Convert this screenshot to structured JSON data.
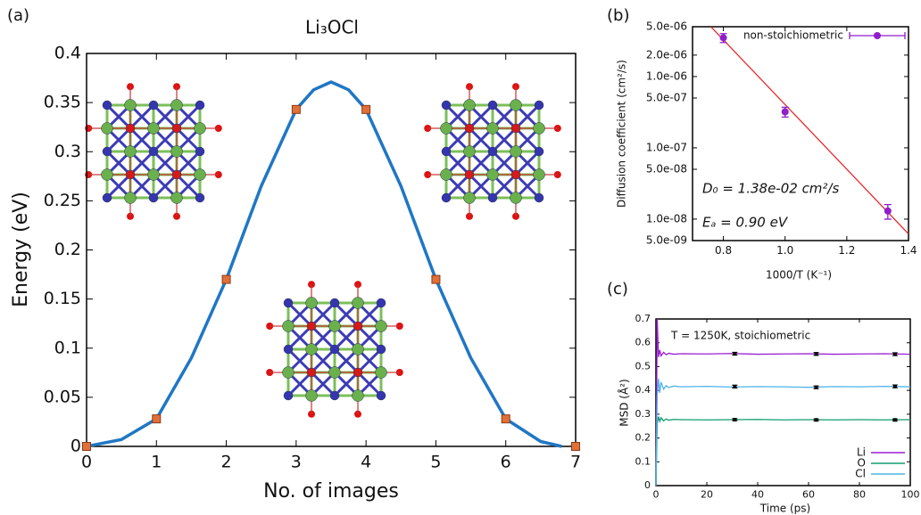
{
  "chart_data": [
    {
      "type": "line",
      "panel_label": "(a)",
      "title": "Li₃OCl",
      "x_label": "No. of images",
      "y_label": "Energy (eV)",
      "xlim": [
        0,
        7
      ],
      "ylim": [
        0,
        0.4
      ],
      "xticks": [
        0,
        1,
        2,
        3,
        4,
        5,
        6,
        7
      ],
      "yticks": [
        0,
        0.05,
        0.1,
        0.15,
        0.2,
        0.25,
        0.3,
        0.35,
        0.4
      ],
      "curve": {
        "color": "#1f77c4",
        "x": [
          0,
          0.5,
          1,
          1.5,
          2,
          2.5,
          3,
          3.25,
          3.5,
          3.75,
          4,
          4.5,
          5,
          5.5,
          6,
          6.5,
          6.8
        ],
        "values": [
          0,
          0.007,
          0.028,
          0.09,
          0.17,
          0.265,
          0.343,
          0.363,
          0.371,
          0.363,
          0.343,
          0.265,
          0.17,
          0.09,
          0.028,
          0.005,
          0
        ]
      },
      "markers": {
        "color": "#e0703a",
        "x": [
          0,
          1,
          2,
          3,
          4,
          5,
          6,
          7
        ],
        "values": [
          0,
          0.028,
          0.17,
          0.343,
          0.343,
          0.17,
          0.028,
          0
        ]
      }
    },
    {
      "type": "scatter",
      "panel_label": "(b)",
      "x_label": "1000/T (K⁻¹)",
      "y_label": "Diffusion coefficient (cm²/s)",
      "log_y": true,
      "xlim": [
        0.7,
        1.4
      ],
      "ylim": [
        5e-09,
        5e-06
      ],
      "xticks": [
        {
          "value": 0.8,
          "label": "0.8"
        },
        {
          "value": 1.0,
          "label": "1.0"
        },
        {
          "value": 1.2,
          "label": "1.2"
        },
        {
          "value": 1.4,
          "label": "1.4"
        }
      ],
      "yticks": [
        {
          "value": 5e-06,
          "label": "5.0e-06"
        },
        {
          "value": 2e-06,
          "label": "2.0e-06"
        },
        {
          "value": 1e-06,
          "label": "1.0e-06"
        },
        {
          "value": 5e-07,
          "label": "5.0e-07"
        },
        {
          "value": 1e-07,
          "label": "1.0e-07"
        },
        {
          "value": 5e-08,
          "label": "5.0e-08"
        },
        {
          "value": 1e-08,
          "label": "1.0e-08"
        },
        {
          "value": 5e-09,
          "label": "5.0e-09"
        }
      ],
      "legend": "top-right",
      "series": [
        {
          "name": "non-stoichiometric",
          "color": "#8e1fc9",
          "x": [
            0.8,
            1.0,
            1.333
          ],
          "values": [
            3.5e-06,
            3.2e-07,
            1.3e-08
          ],
          "errors": [
            5e-07,
            5e-08,
            3e-09
          ]
        }
      ],
      "fit": {
        "color": "#e8282b",
        "x": [
          0.76,
          1.4
        ],
        "values": [
          4.97e-06,
          6.2e-09
        ]
      },
      "annotations": [
        "D₀ = 1.38e-02 cm²/s",
        "Eₐ = 0.90 eV"
      ]
    },
    {
      "type": "line",
      "panel_label": "(c)",
      "x_label": "Time (ps)",
      "y_label": "MSD (Å²)",
      "xlim": [
        0,
        100
      ],
      "ylim": [
        0,
        0.7
      ],
      "xticks": [
        0,
        20,
        40,
        60,
        80,
        100
      ],
      "yticks": [
        0,
        0.1,
        0.2,
        0.3,
        0.4,
        0.5,
        0.6,
        0.7
      ],
      "legend": "bottom-right",
      "annotation": "T = 1250K, stoichiometric",
      "x": [
        0,
        0.5,
        1,
        1.5,
        2,
        3,
        4,
        5,
        7,
        10,
        20,
        30,
        40,
        50,
        60,
        70,
        80,
        90,
        100
      ],
      "err_x": [
        31,
        63,
        94
      ],
      "series": [
        {
          "name": "Li",
          "color": "#9b1fd1",
          "values": [
            0,
            0.7,
            0.54,
            0.57,
            0.545,
            0.56,
            0.55,
            0.556,
            0.552,
            0.554,
            0.553,
            0.555,
            0.552,
            0.553,
            0.554,
            0.552,
            0.553,
            0.554,
            0.552
          ],
          "err_values": [
            0.554,
            0.553,
            0.552
          ],
          "errors": [
            0.006,
            0.006,
            0.006
          ]
        },
        {
          "name": "O",
          "color": "#109c70",
          "values": [
            0,
            0.26,
            0.29,
            0.27,
            0.285,
            0.272,
            0.28,
            0.275,
            0.278,
            0.277,
            0.276,
            0.277,
            0.278,
            0.276,
            0.277,
            0.276,
            0.277,
            0.276,
            0.277
          ],
          "err_values": [
            0.277,
            0.276,
            0.276
          ],
          "errors": [
            0.004,
            0.004,
            0.004
          ]
        },
        {
          "name": "Cl",
          "color": "#4fb3e8",
          "values": [
            0,
            0.38,
            0.45,
            0.39,
            0.435,
            0.405,
            0.42,
            0.412,
            0.418,
            0.415,
            0.417,
            0.414,
            0.416,
            0.415,
            0.413,
            0.416,
            0.415,
            0.417,
            0.415
          ],
          "err_values": [
            0.416,
            0.413,
            0.417
          ],
          "errors": [
            0.006,
            0.006,
            0.006
          ]
        }
      ]
    }
  ]
}
